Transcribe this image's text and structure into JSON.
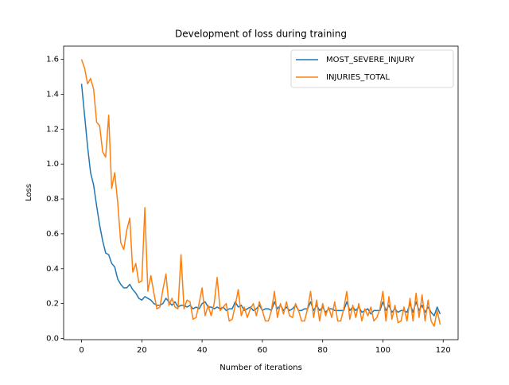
{
  "chart_data": {
    "type": "line",
    "title": "Development of loss during training",
    "xlabel": "Number of iterations",
    "ylabel": "Loss",
    "x": [
      0,
      1,
      2,
      3,
      4,
      5,
      6,
      7,
      8,
      9,
      10,
      11,
      12,
      13,
      14,
      15,
      16,
      17,
      18,
      19,
      20,
      21,
      22,
      23,
      24,
      25,
      26,
      27,
      28,
      29,
      30,
      31,
      32,
      33,
      34,
      35,
      36,
      37,
      38,
      39,
      40,
      41,
      42,
      43,
      44,
      45,
      46,
      47,
      48,
      49,
      50,
      51,
      52,
      53,
      54,
      55,
      56,
      57,
      58,
      59,
      60,
      61,
      62,
      63,
      64,
      65,
      66,
      67,
      68,
      69,
      70,
      71,
      72,
      73,
      74,
      75,
      76,
      77,
      78,
      79,
      80,
      81,
      82,
      83,
      84,
      85,
      86,
      87,
      88,
      89,
      90,
      91,
      92,
      93,
      94,
      95,
      96,
      97,
      98,
      99,
      100,
      101,
      102,
      103,
      104,
      105,
      106,
      107,
      108,
      109,
      110,
      111,
      112,
      113,
      114,
      115,
      116,
      117,
      118,
      119
    ],
    "series": [
      {
        "name": "MOST_SEVERE_INJURY",
        "color": "#1f77b4",
        "values": [
          1.46,
          1.28,
          1.1,
          0.95,
          0.88,
          0.76,
          0.65,
          0.56,
          0.49,
          0.48,
          0.43,
          0.41,
          0.34,
          0.31,
          0.29,
          0.29,
          0.31,
          0.28,
          0.26,
          0.23,
          0.22,
          0.24,
          0.23,
          0.22,
          0.2,
          0.19,
          0.19,
          0.2,
          0.23,
          0.21,
          0.19,
          0.21,
          0.18,
          0.19,
          0.19,
          0.18,
          0.19,
          0.17,
          0.18,
          0.17,
          0.2,
          0.21,
          0.18,
          0.18,
          0.17,
          0.18,
          0.17,
          0.18,
          0.16,
          0.17,
          0.17,
          0.21,
          0.18,
          0.19,
          0.16,
          0.17,
          0.18,
          0.16,
          0.17,
          0.19,
          0.16,
          0.17,
          0.17,
          0.16,
          0.21,
          0.17,
          0.19,
          0.16,
          0.18,
          0.16,
          0.17,
          0.19,
          0.16,
          0.16,
          0.17,
          0.17,
          0.21,
          0.16,
          0.19,
          0.16,
          0.18,
          0.15,
          0.17,
          0.17,
          0.16,
          0.16,
          0.16,
          0.16,
          0.21,
          0.16,
          0.18,
          0.16,
          0.18,
          0.15,
          0.16,
          0.17,
          0.14,
          0.16,
          0.16,
          0.16,
          0.21,
          0.16,
          0.19,
          0.15,
          0.17,
          0.15,
          0.16,
          0.16,
          0.15,
          0.2,
          0.15,
          0.21,
          0.16,
          0.19,
          0.15,
          0.18,
          0.15,
          0.13,
          0.18,
          0.14
        ]
      },
      {
        "name": "INJURIES_TOTAL",
        "color": "#ff7f0e",
        "values": [
          1.6,
          1.55,
          1.46,
          1.49,
          1.43,
          1.24,
          1.22,
          1.07,
          1.04,
          1.28,
          0.86,
          0.95,
          0.78,
          0.55,
          0.51,
          0.62,
          0.69,
          0.38,
          0.43,
          0.32,
          0.33,
          0.75,
          0.27,
          0.36,
          0.26,
          0.17,
          0.18,
          0.28,
          0.37,
          0.19,
          0.23,
          0.18,
          0.17,
          0.48,
          0.17,
          0.22,
          0.21,
          0.11,
          0.12,
          0.2,
          0.29,
          0.13,
          0.19,
          0.13,
          0.2,
          0.35,
          0.16,
          0.18,
          0.2,
          0.1,
          0.11,
          0.19,
          0.28,
          0.13,
          0.18,
          0.12,
          0.17,
          0.2,
          0.13,
          0.21,
          0.16,
          0.1,
          0.1,
          0.16,
          0.27,
          0.12,
          0.2,
          0.14,
          0.21,
          0.13,
          0.12,
          0.2,
          0.16,
          0.1,
          0.1,
          0.17,
          0.27,
          0.12,
          0.22,
          0.1,
          0.2,
          0.13,
          0.18,
          0.12,
          0.21,
          0.1,
          0.1,
          0.17,
          0.27,
          0.11,
          0.19,
          0.12,
          0.2,
          0.1,
          0.17,
          0.13,
          0.18,
          0.1,
          0.12,
          0.17,
          0.27,
          0.1,
          0.24,
          0.11,
          0.19,
          0.09,
          0.1,
          0.18,
          0.1,
          0.23,
          0.1,
          0.26,
          0.12,
          0.25,
          0.1,
          0.22,
          0.1,
          0.07,
          0.16,
          0.08
        ]
      }
    ],
    "xlim": [
      -5.95,
      124.95
    ],
    "xticks": [
      0,
      20,
      40,
      60,
      80,
      100,
      120
    ],
    "ylim": [
      -0.007,
      1.676
    ],
    "yticks": [
      {
        "value": 0,
        "label": "0.0"
      },
      0.2,
      0.4,
      0.6,
      0.8,
      {
        "value": 1,
        "label": "1.0"
      },
      1.2,
      1.4,
      1.6
    ],
    "legend": "upper right"
  }
}
